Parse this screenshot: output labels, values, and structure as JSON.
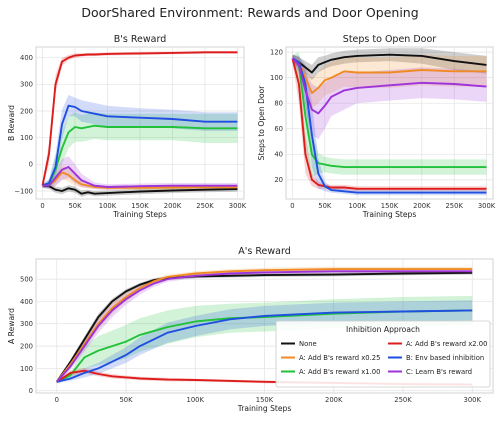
{
  "suptitle": "DoorShared Environment: Rewards and Door Opening",
  "colors": {
    "None": "#111111",
    "A: Add B's reward x0.25": "#f08a24",
    "A: Add B's reward x1.00": "#22c13a",
    "A: Add B's reward x2.00": "#dd1c1c",
    "B: Env based inhibition": "#1f4fe0",
    "C: Learn B's reward": "#9d33d8"
  },
  "legend": {
    "title": "Inhibition Approach",
    "entries": [
      "None",
      "A: Add B's reward x0.25",
      "A: Add B's reward x1.00",
      "A: Add B's reward x2.00",
      "B: Env based inhibition",
      "C: Learn B's reward"
    ],
    "placement": "lower-right"
  },
  "chart_data": [
    {
      "id": "b_reward",
      "type": "line",
      "title": "B's Reward",
      "xlabel": "Training Steps",
      "ylabel": "B Reward",
      "xlim": [
        -10000,
        310000
      ],
      "ylim": [
        -130,
        440
      ],
      "xticks": [
        0,
        50000,
        100000,
        150000,
        200000,
        250000,
        300000
      ],
      "xtick_labels": [
        "0",
        "50K",
        "100K",
        "150K",
        "200K",
        "250K",
        "300K"
      ],
      "yticks": [
        -100,
        0,
        100,
        200,
        300,
        400
      ],
      "ytick_labels": [
        "−100",
        "0",
        "100",
        "200",
        "300",
        "400"
      ],
      "grid": true,
      "series": [
        {
          "name": "None",
          "x": [
            0,
            10000,
            20000,
            30000,
            40000,
            50000,
            60000,
            70000,
            80000,
            100000,
            150000,
            200000,
            250000,
            300000
          ],
          "y": [
            -80,
            -82,
            -95,
            -100,
            -90,
            -95,
            -110,
            -105,
            -110,
            -108,
            -102,
            -98,
            -95,
            -93
          ],
          "band": [
            8,
            10,
            12,
            12,
            12,
            12,
            12,
            10,
            10,
            10,
            10,
            10,
            10,
            10
          ]
        },
        {
          "name": "A: Add B's reward x0.25",
          "x": [
            0,
            10000,
            20000,
            30000,
            40000,
            50000,
            60000,
            80000,
            100000,
            150000,
            200000,
            250000,
            300000
          ],
          "y": [
            -80,
            -78,
            -60,
            -30,
            -40,
            -60,
            -75,
            -85,
            -88,
            -88,
            -87,
            -86,
            -86
          ],
          "band": [
            8,
            10,
            20,
            25,
            25,
            20,
            12,
            8,
            8,
            8,
            8,
            8,
            8
          ]
        },
        {
          "name": "A: Add B's reward x1.00",
          "x": [
            0,
            10000,
            20000,
            30000,
            40000,
            50000,
            60000,
            80000,
            100000,
            150000,
            200000,
            250000,
            300000
          ],
          "y": [
            -80,
            -75,
            -20,
            60,
            120,
            140,
            135,
            145,
            140,
            140,
            140,
            135,
            135
          ],
          "band": [
            8,
            15,
            50,
            60,
            60,
            55,
            50,
            50,
            50,
            50,
            50,
            55,
            55
          ]
        },
        {
          "name": "A: Add B's reward x2.00",
          "x": [
            0,
            10000,
            20000,
            30000,
            40000,
            50000,
            60000,
            70000,
            80000,
            100000,
            150000,
            200000,
            250000,
            300000
          ],
          "y": [
            -80,
            40,
            300,
            385,
            400,
            408,
            410,
            412,
            412,
            414,
            416,
            418,
            420,
            420
          ],
          "band": [
            8,
            40,
            35,
            15,
            10,
            8,
            6,
            6,
            6,
            6,
            6,
            5,
            5,
            5
          ]
        },
        {
          "name": "B: Env based inhibition",
          "x": [
            0,
            10000,
            20000,
            30000,
            40000,
            50000,
            60000,
            80000,
            100000,
            150000,
            200000,
            250000,
            300000
          ],
          "y": [
            -80,
            -70,
            -10,
            150,
            220,
            215,
            200,
            190,
            180,
            175,
            170,
            160,
            160
          ],
          "band": [
            8,
            15,
            50,
            55,
            40,
            35,
            40,
            40,
            40,
            35,
            35,
            35,
            35
          ]
        },
        {
          "name": "C: Learn B's reward",
          "x": [
            0,
            10000,
            20000,
            30000,
            40000,
            50000,
            60000,
            80000,
            100000,
            150000,
            200000,
            250000,
            300000
          ],
          "y": [
            -80,
            -80,
            -50,
            -20,
            -10,
            -35,
            -60,
            -80,
            -85,
            -82,
            -80,
            -80,
            -80
          ],
          "band": [
            8,
            12,
            30,
            40,
            40,
            35,
            25,
            12,
            10,
            10,
            10,
            10,
            10
          ]
        }
      ]
    },
    {
      "id": "steps_to_open",
      "type": "line",
      "title": "Steps to Open Door",
      "xlabel": "Training Steps",
      "ylabel": "Steps to Open Door",
      "xlim": [
        -10000,
        310000
      ],
      "ylim": [
        5,
        124
      ],
      "xticks": [
        0,
        50000,
        100000,
        150000,
        200000,
        250000,
        300000
      ],
      "xtick_labels": [
        "0",
        "50K",
        "100K",
        "150K",
        "200K",
        "250K",
        "300K"
      ],
      "yticks": [
        20,
        40,
        60,
        80,
        100,
        120
      ],
      "ytick_labels": [
        "20",
        "40",
        "60",
        "80",
        "100",
        "120"
      ],
      "grid": true,
      "series": [
        {
          "name": "None",
          "x": [
            0,
            10000,
            20000,
            30000,
            40000,
            50000,
            60000,
            80000,
            100000,
            150000,
            200000,
            250000,
            300000
          ],
          "y": [
            115,
            112,
            108,
            104,
            110,
            112,
            114,
            116,
            117,
            118,
            117,
            113,
            110
          ],
          "band": [
            3,
            4,
            5,
            6,
            6,
            5,
            5,
            5,
            5,
            5,
            6,
            7,
            7
          ]
        },
        {
          "name": "A: Add B's reward x0.25",
          "x": [
            0,
            10000,
            20000,
            30000,
            40000,
            50000,
            60000,
            80000,
            100000,
            150000,
            200000,
            250000,
            300000
          ],
          "y": [
            115,
            112,
            100,
            88,
            92,
            98,
            100,
            105,
            104,
            104,
            106,
            105,
            105
          ],
          "band": [
            3,
            5,
            8,
            12,
            12,
            12,
            12,
            12,
            12,
            12,
            12,
            12,
            12
          ]
        },
        {
          "name": "A: Add B's reward x1.00",
          "x": [
            0,
            10000,
            20000,
            30000,
            40000,
            50000,
            60000,
            80000,
            100000,
            150000,
            200000,
            250000,
            300000
          ],
          "y": [
            115,
            110,
            70,
            40,
            33,
            32,
            31,
            30,
            30,
            30,
            30,
            30,
            30
          ],
          "band": [
            3,
            10,
            25,
            18,
            8,
            6,
            6,
            6,
            6,
            6,
            6,
            6,
            6
          ]
        },
        {
          "name": "A: Add B's reward x2.00",
          "x": [
            0,
            10000,
            20000,
            30000,
            40000,
            50000,
            60000,
            80000,
            100000,
            150000,
            200000,
            250000,
            300000
          ],
          "y": [
            115,
            95,
            40,
            20,
            16,
            15,
            14,
            14,
            13,
            13,
            13,
            13,
            13
          ],
          "band": [
            3,
            15,
            15,
            5,
            3,
            2,
            2,
            2,
            2,
            2,
            2,
            2,
            2
          ]
        },
        {
          "name": "B: Env based inhibition",
          "x": [
            0,
            10000,
            20000,
            30000,
            40000,
            50000,
            60000,
            80000,
            100000,
            150000,
            200000,
            250000,
            300000
          ],
          "y": [
            115,
            112,
            95,
            55,
            25,
            15,
            12,
            11,
            10,
            10,
            10,
            10,
            10
          ],
          "band": [
            3,
            5,
            15,
            25,
            12,
            4,
            2,
            2,
            2,
            2,
            2,
            2,
            2
          ]
        },
        {
          "name": "C: Learn B's reward",
          "x": [
            0,
            10000,
            20000,
            30000,
            40000,
            50000,
            60000,
            80000,
            100000,
            150000,
            200000,
            250000,
            300000
          ],
          "y": [
            115,
            110,
            90,
            75,
            72,
            78,
            85,
            90,
            92,
            94,
            96,
            95,
            93
          ],
          "band": [
            3,
            6,
            15,
            20,
            20,
            18,
            15,
            15,
            12,
            12,
            12,
            12,
            12
          ]
        }
      ]
    },
    {
      "id": "a_reward",
      "type": "line",
      "title": "A's Reward",
      "xlabel": "Training Steps",
      "ylabel": "A Reward",
      "xlim": [
        -15000,
        315000
      ],
      "ylim": [
        -10,
        590
      ],
      "xticks": [
        0,
        50000,
        100000,
        150000,
        200000,
        250000,
        300000
      ],
      "xtick_labels": [
        "0",
        "50K",
        "100K",
        "150K",
        "200K",
        "250K",
        "300K"
      ],
      "yticks": [
        0,
        100,
        200,
        300,
        400,
        500
      ],
      "ytick_labels": [
        "0",
        "100",
        "200",
        "300",
        "400",
        "500"
      ],
      "grid": true,
      "series": [
        {
          "name": "None",
          "x": [
            0,
            10000,
            20000,
            30000,
            40000,
            50000,
            60000,
            70000,
            80000,
            100000,
            125000,
            150000,
            200000,
            250000,
            300000
          ],
          "y": [
            40,
            130,
            230,
            330,
            400,
            445,
            475,
            495,
            505,
            512,
            515,
            518,
            520,
            525,
            528
          ],
          "band": [
            6,
            10,
            15,
            15,
            12,
            10,
            8,
            8,
            8,
            8,
            8,
            8,
            8,
            8,
            8
          ]
        },
        {
          "name": "A: Add B's reward x0.25",
          "x": [
            0,
            10000,
            20000,
            30000,
            40000,
            50000,
            60000,
            70000,
            80000,
            100000,
            125000,
            150000,
            200000,
            250000,
            300000
          ],
          "y": [
            40,
            120,
            210,
            300,
            370,
            420,
            460,
            490,
            510,
            525,
            535,
            540,
            545,
            545,
            545
          ],
          "band": [
            6,
            12,
            20,
            25,
            25,
            20,
            15,
            12,
            10,
            10,
            10,
            10,
            10,
            10,
            10
          ]
        },
        {
          "name": "A: Add B's reward x1.00",
          "x": [
            0,
            10000,
            20000,
            30000,
            40000,
            50000,
            60000,
            80000,
            100000,
            125000,
            150000,
            200000,
            250000,
            300000
          ],
          "y": [
            40,
            70,
            150,
            180,
            200,
            220,
            250,
            285,
            310,
            325,
            330,
            345,
            355,
            360
          ],
          "band": [
            6,
            12,
            50,
            65,
            70,
            75,
            75,
            75,
            70,
            65,
            65,
            65,
            65,
            65
          ]
        },
        {
          "name": "A: Add B's reward x2.00",
          "x": [
            0,
            10000,
            20000,
            30000,
            40000,
            50000,
            60000,
            80000,
            100000,
            150000,
            200000,
            250000,
            300000
          ],
          "y": [
            40,
            80,
            90,
            75,
            65,
            60,
            55,
            50,
            48,
            40,
            35,
            30,
            28
          ],
          "band": [
            6,
            12,
            12,
            10,
            10,
            8,
            8,
            8,
            6,
            6,
            5,
            5,
            5
          ]
        },
        {
          "name": "B: Env based inhibition",
          "x": [
            0,
            10000,
            20000,
            30000,
            40000,
            50000,
            60000,
            80000,
            100000,
            125000,
            150000,
            200000,
            250000,
            300000
          ],
          "y": [
            40,
            55,
            80,
            100,
            130,
            160,
            200,
            260,
            290,
            320,
            335,
            350,
            355,
            360
          ],
          "band": [
            6,
            10,
            20,
            25,
            30,
            35,
            40,
            45,
            45,
            45,
            45,
            45,
            45,
            45
          ]
        },
        {
          "name": "C: Learn B's reward",
          "x": [
            0,
            10000,
            20000,
            30000,
            40000,
            50000,
            60000,
            70000,
            80000,
            100000,
            125000,
            150000,
            200000,
            250000,
            300000
          ],
          "y": [
            40,
            110,
            200,
            290,
            360,
            410,
            450,
            480,
            500,
            515,
            525,
            530,
            535,
            535,
            535
          ],
          "band": [
            6,
            15,
            25,
            30,
            30,
            25,
            20,
            15,
            12,
            10,
            10,
            10,
            10,
            10,
            10
          ]
        }
      ]
    }
  ]
}
